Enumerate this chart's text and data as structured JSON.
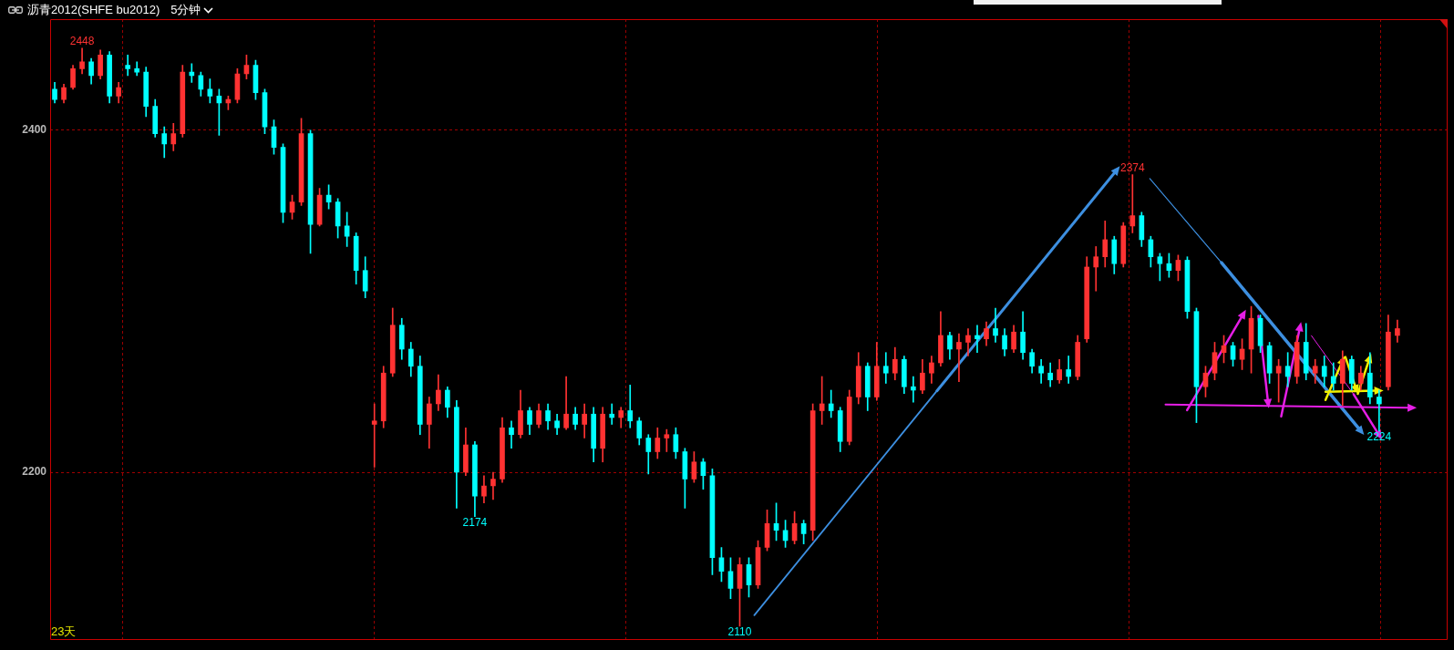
{
  "chart_data": {
    "type": "candlestick",
    "title": "沥青2012(SHFE bu2012)",
    "subtitle": "5分钟",
    "categories": [
      null,
      null,
      null,
      null,
      null,
      null,
      null,
      null,
      null,
      null,
      null,
      null,
      null,
      null,
      null,
      null,
      null,
      null,
      null,
      null,
      null,
      null,
      null,
      null,
      null,
      null,
      null,
      null,
      null,
      null,
      null,
      null,
      null,
      null,
      null,
      null,
      null,
      null,
      null,
      null,
      null,
      null,
      null,
      null,
      null,
      null,
      null,
      null,
      null,
      null,
      null,
      null,
      null,
      null,
      null,
      null,
      null,
      null,
      null,
      null,
      null,
      null,
      null,
      null,
      null,
      null,
      null,
      null,
      null,
      null,
      null,
      null,
      null,
      null,
      null,
      null,
      null,
      null,
      null,
      null,
      null,
      null,
      null,
      null,
      null,
      null,
      null,
      null,
      null,
      null,
      null,
      null,
      null,
      null,
      null,
      null,
      null,
      null,
      null,
      null,
      null,
      null,
      null,
      null,
      null,
      null,
      null,
      null,
      null,
      null,
      null,
      null,
      null,
      null,
      null,
      null,
      null,
      null,
      null,
      null,
      null,
      null,
      null,
      null,
      null,
      null,
      null,
      null,
      null,
      null,
      null,
      null,
      null,
      null,
      null,
      null,
      null,
      null,
      null,
      null,
      null,
      null,
      null,
      null,
      null,
      null,
      null,
      null,
      null,
      null,
      null,
      null,
      null
    ],
    "ohlc": [
      [
        2424,
        2428,
        2416,
        2418
      ],
      [
        2418,
        2427,
        2416,
        2425
      ],
      [
        2425,
        2438,
        2424,
        2436
      ],
      [
        2436,
        2448,
        2433,
        2440
      ],
      [
        2440,
        2442,
        2427,
        2432
      ],
      [
        2432,
        2447,
        2430,
        2444
      ],
      [
        2444,
        2446,
        2416,
        2420
      ],
      [
        2420,
        2428,
        2416,
        2425
      ],
      [
        2438,
        2444,
        2432,
        2436
      ],
      [
        2436,
        2440,
        2432,
        2434
      ],
      [
        2434,
        2437,
        2408,
        2414
      ],
      [
        2414,
        2418,
        2396,
        2398
      ],
      [
        2398,
        2402,
        2384,
        2392
      ],
      [
        2392,
        2404,
        2388,
        2398
      ],
      [
        2398,
        2438,
        2396,
        2434
      ],
      [
        2434,
        2439,
        2428,
        2432
      ],
      [
        2432,
        2434,
        2420,
        2424
      ],
      [
        2424,
        2430,
        2416,
        2420
      ],
      [
        2420,
        2424,
        2397,
        2416
      ],
      [
        2416,
        2420,
        2412,
        2418
      ],
      [
        2418,
        2436,
        2416,
        2433
      ],
      [
        2433,
        2444,
        2430,
        2438
      ],
      [
        2438,
        2441,
        2418,
        2422
      ],
      [
        2422,
        2424,
        2398,
        2402
      ],
      [
        2402,
        2406,
        2386,
        2390
      ],
      [
        2390,
        2392,
        2346,
        2352
      ],
      [
        2352,
        2362,
        2348,
        2358
      ],
      [
        2358,
        2407,
        2356,
        2398
      ],
      [
        2398,
        2400,
        2328,
        2345
      ],
      [
        2345,
        2366,
        2344,
        2362
      ],
      [
        2362,
        2368,
        2354,
        2358
      ],
      [
        2358,
        2360,
        2337,
        2344
      ],
      [
        2344,
        2352,
        2332,
        2338
      ],
      [
        2338,
        2340,
        2310,
        2318
      ],
      [
        2318,
        2326,
        2302,
        2306
      ],
      [
        2228,
        2240,
        2203,
        2230
      ],
      [
        2230,
        2262,
        2226,
        2258
      ],
      [
        2258,
        2296,
        2256,
        2286
      ],
      [
        2286,
        2290,
        2266,
        2272
      ],
      [
        2272,
        2276,
        2256,
        2262
      ],
      [
        2262,
        2268,
        2222,
        2228
      ],
      [
        2228,
        2244,
        2214,
        2240
      ],
      [
        2240,
        2257,
        2236,
        2248
      ],
      [
        2248,
        2250,
        2232,
        2238
      ],
      [
        2238,
        2242,
        2179,
        2200
      ],
      [
        2200,
        2226,
        2198,
        2216
      ],
      [
        2216,
        2218,
        2174,
        2186
      ],
      [
        2186,
        2198,
        2182,
        2192
      ],
      [
        2192,
        2200,
        2184,
        2196
      ],
      [
        2196,
        2232,
        2194,
        2226
      ],
      [
        2226,
        2230,
        2214,
        2222
      ],
      [
        2222,
        2248,
        2220,
        2236
      ],
      [
        2236,
        2238,
        2222,
        2228
      ],
      [
        2228,
        2240,
        2226,
        2236
      ],
      [
        2236,
        2240,
        2225,
        2230
      ],
      [
        2230,
        2234,
        2222,
        2226
      ],
      [
        2226,
        2256,
        2225,
        2234
      ],
      [
        2234,
        2238,
        2225,
        2228
      ],
      [
        2228,
        2240,
        2220,
        2234
      ],
      [
        2234,
        2238,
        2206,
        2214
      ],
      [
        2214,
        2238,
        2206,
        2234
      ],
      [
        2234,
        2240,
        2228,
        2232
      ],
      [
        2232,
        2238,
        2226,
        2236
      ],
      [
        2236,
        2251,
        2226,
        2230
      ],
      [
        2230,
        2232,
        2216,
        2220
      ],
      [
        2220,
        2222,
        2199,
        2212
      ],
      [
        2212,
        2226,
        2208,
        2220
      ],
      [
        2220,
        2225,
        2212,
        2222
      ],
      [
        2222,
        2226,
        2208,
        2212
      ],
      [
        2212,
        2214,
        2179,
        2196
      ],
      [
        2196,
        2212,
        2194,
        2206
      ],
      [
        2206,
        2208,
        2190,
        2198
      ],
      [
        2198,
        2202,
        2140,
        2150
      ],
      [
        2150,
        2156,
        2136,
        2142
      ],
      [
        2142,
        2150,
        2126,
        2132
      ],
      [
        2132,
        2150,
        2110,
        2146
      ],
      [
        2146,
        2150,
        2127,
        2134
      ],
      [
        2134,
        2160,
        2132,
        2156
      ],
      [
        2156,
        2178,
        2154,
        2170
      ],
      [
        2170,
        2182,
        2160,
        2166
      ],
      [
        2166,
        2172,
        2156,
        2160
      ],
      [
        2160,
        2177,
        2158,
        2170
      ],
      [
        2170,
        2172,
        2158,
        2164
      ],
      [
        2166,
        2240,
        2160,
        2236
      ],
      [
        2236,
        2256,
        2228,
        2240
      ],
      [
        2240,
        2248,
        2232,
        2236
      ],
      [
        2236,
        2238,
        2212,
        2218
      ],
      [
        2218,
        2248,
        2216,
        2244
      ],
      [
        2244,
        2270,
        2240,
        2262
      ],
      [
        2262,
        2264,
        2236,
        2244
      ],
      [
        2244,
        2276,
        2242,
        2262
      ],
      [
        2262,
        2270,
        2252,
        2258
      ],
      [
        2258,
        2273,
        2254,
        2266
      ],
      [
        2266,
        2268,
        2246,
        2250
      ],
      [
        2250,
        2256,
        2241,
        2248
      ],
      [
        2248,
        2266,
        2246,
        2258
      ],
      [
        2258,
        2268,
        2252,
        2264
      ],
      [
        2264,
        2294,
        2262,
        2280
      ],
      [
        2280,
        2282,
        2266,
        2272
      ],
      [
        2272,
        2281,
        2253,
        2276
      ],
      [
        2276,
        2284,
        2268,
        2280
      ],
      [
        2280,
        2286,
        2270,
        2278
      ],
      [
        2278,
        2288,
        2274,
        2284
      ],
      [
        2284,
        2296,
        2276,
        2280
      ],
      [
        2280,
        2284,
        2268,
        2272
      ],
      [
        2272,
        2286,
        2270,
        2282
      ],
      [
        2282,
        2294,
        2266,
        2270
      ],
      [
        2270,
        2272,
        2258,
        2262
      ],
      [
        2262,
        2266,
        2252,
        2258
      ],
      [
        2258,
        2264,
        2250,
        2254
      ],
      [
        2254,
        2266,
        2252,
        2260
      ],
      [
        2260,
        2268,
        2252,
        2256
      ],
      [
        2256,
        2280,
        2254,
        2276
      ],
      [
        2278,
        2326,
        2276,
        2320
      ],
      [
        2320,
        2332,
        2306,
        2326
      ],
      [
        2326,
        2347,
        2320,
        2336
      ],
      [
        2336,
        2338,
        2316,
        2322
      ],
      [
        2322,
        2346,
        2320,
        2344
      ],
      [
        2344,
        2374,
        2340,
        2350
      ],
      [
        2350,
        2352,
        2332,
        2336
      ],
      [
        2336,
        2338,
        2320,
        2326
      ],
      [
        2326,
        2328,
        2312,
        2322
      ],
      [
        2322,
        2328,
        2314,
        2318
      ],
      [
        2318,
        2327,
        2312,
        2324
      ],
      [
        2324,
        2326,
        2290,
        2294
      ],
      [
        2294,
        2296,
        2229,
        2250
      ],
      [
        2250,
        2262,
        2244,
        2258
      ],
      [
        2258,
        2276,
        2254,
        2270
      ],
      [
        2270,
        2280,
        2264,
        2274
      ],
      [
        2274,
        2276,
        2262,
        2266
      ],
      [
        2266,
        2278,
        2260,
        2272
      ],
      [
        2272,
        2297,
        2258,
        2290
      ],
      [
        2290,
        2292,
        2270,
        2274
      ],
      [
        2274,
        2276,
        2252,
        2258
      ],
      [
        2258,
        2266,
        2241,
        2262
      ],
      [
        2262,
        2270,
        2250,
        2256
      ],
      [
        2256,
        2280,
        2252,
        2276
      ],
      [
        2276,
        2287,
        2254,
        2258
      ],
      [
        2258,
        2266,
        2252,
        2262
      ],
      [
        2262,
        2268,
        2250,
        2256
      ],
      [
        2256,
        2264,
        2248,
        2252
      ],
      [
        2252,
        2271,
        2239,
        2266
      ],
      [
        2266,
        2268,
        2248,
        2252
      ],
      [
        2252,
        2262,
        2248,
        2258
      ],
      [
        2258,
        2270,
        2240,
        2244
      ],
      [
        2244,
        2248,
        2224,
        2240
      ],
      [
        2250,
        2292,
        2248,
        2282
      ],
      [
        2280,
        2289,
        2276,
        2284
      ],
      null,
      null,
      null,
      null,
      null
    ],
    "colors": [
      "#00ffff",
      "#ff3232",
      "#ff3232",
      "#ff3232",
      "#00ffff",
      "#ff3232",
      "#00ffff",
      "#ff3232",
      "#00ffff",
      "#00ffff",
      "#00ffff",
      "#00ffff",
      "#00ffff",
      "#ff3232",
      "#ff3232",
      "#00ffff",
      "#00ffff",
      "#00ffff",
      "#00ffff",
      "#ff3232",
      "#ff3232",
      "#ff3232",
      "#00ffff",
      "#00ffff",
      "#00ffff",
      "#00ffff",
      "#ff3232",
      "#ff3232",
      "#00ffff",
      "#ff3232",
      "#00ffff",
      "#00ffff",
      "#00ffff",
      "#00ffff",
      "#00ffff",
      "#ff3232",
      "#ff3232",
      "#ff3232",
      "#00ffff",
      "#00ffff",
      "#00ffff",
      "#ff3232",
      "#ff3232",
      "#00ffff",
      "#00ffff",
      "#ff3232",
      "#00ffff",
      "#ff3232",
      "#ff3232",
      "#ff3232",
      "#00ffff",
      "#ff3232",
      "#00ffff",
      "#ff3232",
      "#00ffff",
      "#00ffff",
      "#ff3232",
      "#00ffff",
      "#ff3232",
      "#00ffff",
      "#ff3232",
      "#00ffff",
      "#ff3232",
      "#00ffff",
      "#00ffff",
      "#00ffff",
      "#ff3232",
      "#ff3232",
      "#00ffff",
      "#00ffff",
      "#ff3232",
      "#00ffff",
      "#00ffff",
      "#00ffff",
      "#00ffff",
      "#ff3232",
      "#00ffff",
      "#ff3232",
      "#ff3232",
      "#00ffff",
      "#00ffff",
      "#ff3232",
      "#00ffff",
      "#ff3232",
      "#ff3232",
      "#00ffff",
      "#00ffff",
      "#ff3232",
      "#ff3232",
      "#00ffff",
      "#ff3232",
      "#00ffff",
      "#ff3232",
      "#00ffff",
      "#00ffff",
      "#ff3232",
      "#ff3232",
      "#ff3232",
      "#00ffff",
      "#ff3232",
      "#ff3232",
      "#00ffff",
      "#ff3232",
      "#00ffff",
      "#00ffff",
      "#ff3232",
      "#00ffff",
      "#00ffff",
      "#00ffff",
      "#00ffff",
      "#ff3232",
      "#00ffff",
      "#ff3232",
      "#ff3232",
      "#ff3232",
      "#ff3232",
      "#00ffff",
      "#ff3232",
      "#ff3232",
      "#00ffff",
      "#00ffff",
      "#00ffff",
      "#00ffff",
      "#ff3232",
      "#00ffff",
      "#00ffff",
      "#ff3232",
      "#ff3232",
      "#ff3232",
      "#00ffff",
      "#ff3232",
      "#ff3232",
      "#00ffff",
      "#00ffff",
      "#ff3232",
      "#00ffff",
      "#ff3232",
      "#00ffff",
      "#ff3232",
      "#00ffff",
      "#00ffff",
      "#ff3232",
      "#00ffff",
      "#ff3232",
      "#00ffff",
      "#00ffff",
      "#ff3232",
      "#ff3232",
      null,
      null,
      null,
      null,
      null
    ],
    "ylim": [
      2102,
      2465
    ],
    "yticks": [
      2200,
      2400
    ],
    "grid": "y",
    "tick_labels": "y",
    "annotations": [
      {
        "text": "2448",
        "y": 2448
      },
      {
        "text": "2174",
        "y": 2174
      },
      {
        "text": "2110",
        "y": 2110
      },
      {
        "text": "2374",
        "y": 2374
      },
      {
        "text": "2224",
        "y": 2224
      },
      "23天"
    ]
  }
}
